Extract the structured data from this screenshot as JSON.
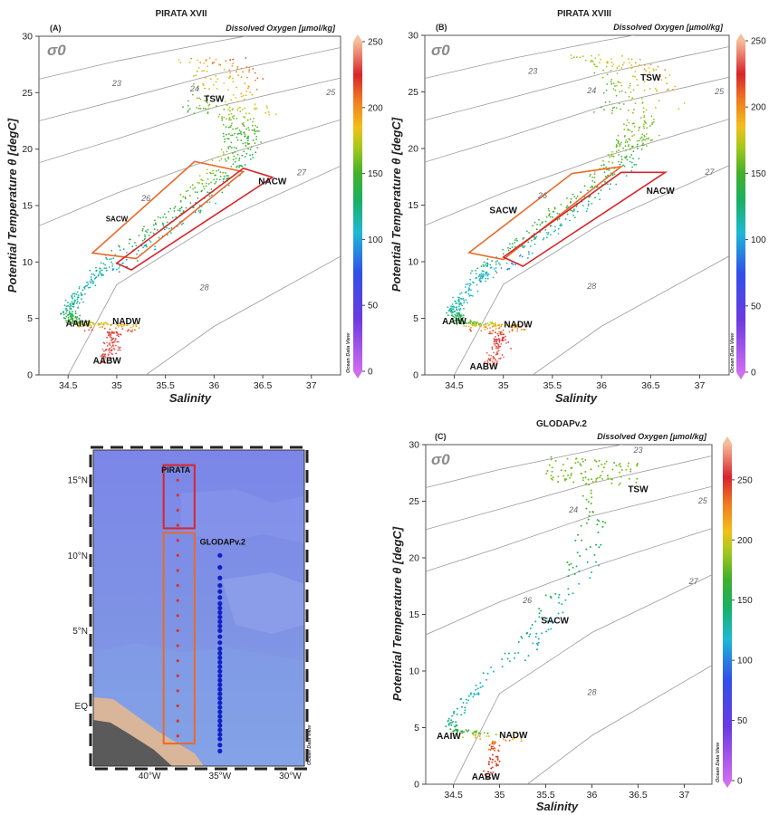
{
  "chart_data": [
    {
      "type": "scatter",
      "id": "A",
      "panel_label": "(A)",
      "title": "PIRATA XVII",
      "colorbar_label": "Dissolved Oxygen [µmol/kg]",
      "colorbar_ticks": [
        0,
        50,
        100,
        150,
        200,
        250
      ],
      "colorbar_range": [
        0,
        250
      ],
      "xlabel": "Salinity",
      "ylabel": "Potential Temperature θ [degC]",
      "xlim": [
        34.2,
        37.3
      ],
      "ylim": [
        0,
        30
      ],
      "xticks": [
        34.5,
        35,
        35.5,
        36,
        36.5,
        37
      ],
      "yticks": [
        0,
        5,
        10,
        15,
        20,
        25,
        30
      ],
      "sigma_label": "σ0",
      "watermark": "Ocean Data View",
      "isopycnals": [
        {
          "label": "23",
          "pts": [
            [
              34.2,
              26.2
            ],
            [
              35.0,
              27.8
            ],
            [
              36.0,
              29.5
            ],
            [
              37.3,
              31.5
            ]
          ],
          "lab": [
            35.0,
            25.6
          ]
        },
        {
          "label": "24",
          "pts": [
            [
              34.2,
              22.5
            ],
            [
              35.0,
              24.3
            ],
            [
              36.0,
              26.6
            ],
            [
              37.3,
              29.0
            ]
          ],
          "lab": [
            35.8,
            25.1
          ]
        },
        {
          "label": "25",
          "pts": [
            [
              34.2,
              18.8
            ],
            [
              35.0,
              20.9
            ],
            [
              36.0,
              23.7
            ],
            [
              37.3,
              26.3
            ]
          ],
          "lab": [
            37.2,
            24.8
          ]
        },
        {
          "label": "26",
          "pts": [
            [
              34.2,
              13.2
            ],
            [
              35.0,
              16.1
            ],
            [
              36.0,
              19.2
            ],
            [
              37.3,
              22.6
            ]
          ],
          "lab": [
            35.3,
            15.4
          ]
        },
        {
          "label": "27",
          "pts": [
            [
              34.5,
              0.0
            ],
            [
              35.0,
              8.0
            ],
            [
              36.0,
              13.4
            ],
            [
              37.3,
              18.5
            ]
          ],
          "lab": [
            36.9,
            17.7
          ]
        },
        {
          "label": "28",
          "pts": [
            [
              35.3,
              0.0
            ],
            [
              36.0,
              4.3
            ],
            [
              37.3,
              10.5
            ]
          ],
          "lab": [
            35.9,
            7.5
          ]
        }
      ],
      "water_masses": [
        {
          "label": "TSW",
          "x": 36.0,
          "y": 24.2
        },
        {
          "label": "NACW",
          "x": 36.6,
          "y": 16.9
        },
        {
          "label": "SACW",
          "x": 35.0,
          "y": 13.6,
          "small": true
        },
        {
          "label": "AAIW",
          "x": 34.6,
          "y": 4.3
        },
        {
          "label": "NADW",
          "x": 35.1,
          "y": 4.5
        },
        {
          "label": "AABW",
          "x": 34.9,
          "y": 1.0
        }
      ],
      "boxes": [
        {
          "name": "SACW",
          "color": "#ea6a2a",
          "pts": [
            [
              34.75,
              10.8
            ],
            [
              35.8,
              18.9
            ],
            [
              36.3,
              18.0
            ],
            [
              35.2,
              10.3
            ]
          ]
        },
        {
          "name": "NACW",
          "color": "#d6262b",
          "pts": [
            [
              35.0,
              9.9
            ],
            [
              36.3,
              18.3
            ],
            [
              36.6,
              17.5
            ],
            [
              35.15,
              9.3
            ]
          ]
        }
      ]
    },
    {
      "type": "scatter",
      "id": "B",
      "panel_label": "(B)",
      "title": "PIRATA XVIII",
      "colorbar_label": "Dissolved Oxygen [µmol/kg]",
      "colorbar_ticks": [
        0,
        50,
        100,
        150,
        200,
        250
      ],
      "colorbar_range": [
        0,
        250
      ],
      "xlabel": "Salinity",
      "ylabel": "Potential Temperature θ [degC]",
      "xlim": [
        34.2,
        37.3
      ],
      "ylim": [
        0,
        30
      ],
      "xticks": [
        34.5,
        35,
        35.5,
        36,
        36.5,
        37
      ],
      "yticks": [
        0,
        5,
        10,
        15,
        20,
        25,
        30
      ],
      "sigma_label": "σ0",
      "watermark": "Ocean Data View",
      "isopycnals": [
        {
          "label": "23",
          "pts": [
            [
              34.2,
              26.2
            ],
            [
              35.0,
              27.8
            ],
            [
              36.0,
              29.5
            ],
            [
              37.3,
              31.5
            ]
          ],
          "lab": [
            35.3,
            26.6
          ]
        },
        {
          "label": "24",
          "pts": [
            [
              34.2,
              22.5
            ],
            [
              35.0,
              24.3
            ],
            [
              36.0,
              26.6
            ],
            [
              37.3,
              29.0
            ]
          ],
          "lab": [
            35.9,
            24.9
          ]
        },
        {
          "label": "25",
          "pts": [
            [
              34.2,
              18.8
            ],
            [
              35.0,
              20.9
            ],
            [
              36.0,
              23.7
            ],
            [
              37.3,
              26.3
            ]
          ],
          "lab": [
            37.2,
            24.8
          ]
        },
        {
          "label": "26",
          "pts": [
            [
              34.2,
              13.2
            ],
            [
              35.0,
              16.1
            ],
            [
              36.0,
              19.2
            ],
            [
              37.3,
              22.6
            ]
          ],
          "lab": [
            35.4,
            15.6
          ]
        },
        {
          "label": "27",
          "pts": [
            [
              34.5,
              0.0
            ],
            [
              35.0,
              8.0
            ],
            [
              36.0,
              13.4
            ],
            [
              37.3,
              18.5
            ]
          ],
          "lab": [
            37.1,
            17.7
          ]
        },
        {
          "label": "28",
          "pts": [
            [
              35.3,
              0.0
            ],
            [
              36.0,
              4.3
            ],
            [
              37.3,
              10.5
            ]
          ],
          "lab": [
            35.9,
            7.6
          ]
        }
      ],
      "water_masses": [
        {
          "label": "TSW",
          "x": 36.5,
          "y": 26.0
        },
        {
          "label": "NACW",
          "x": 36.6,
          "y": 16.0
        },
        {
          "label": "SACW",
          "x": 35.0,
          "y": 14.3
        },
        {
          "label": "AAIW",
          "x": 34.5,
          "y": 4.5
        },
        {
          "label": "NADW",
          "x": 35.15,
          "y": 4.2
        },
        {
          "label": "AABW",
          "x": 34.8,
          "y": 0.5
        }
      ],
      "boxes": [
        {
          "name": "SACW",
          "color": "#ea6a2a",
          "pts": [
            [
              34.65,
              10.8
            ],
            [
              35.7,
              17.8
            ],
            [
              36.2,
              18.4
            ],
            [
              35.0,
              10.2
            ]
          ]
        },
        {
          "name": "NACW",
          "color": "#d6262b",
          "pts": [
            [
              35.0,
              10.4
            ],
            [
              36.2,
              17.9
            ],
            [
              36.65,
              17.9
            ],
            [
              35.2,
              9.6
            ]
          ]
        }
      ]
    },
    {
      "type": "scatter",
      "id": "C",
      "panel_label": "(C)",
      "title": "GLODAPv.2",
      "colorbar_label": "Dissolved Oxygen [µmol/kg]",
      "colorbar_ticks": [
        0,
        50,
        100,
        150,
        200,
        250
      ],
      "colorbar_range": [
        0,
        280
      ],
      "xlabel": "Salinity",
      "ylabel": "Potential Temperature θ [degC]",
      "xlim": [
        34.2,
        37.3
      ],
      "ylim": [
        0,
        30
      ],
      "xticks": [
        34.5,
        35,
        35.5,
        36,
        36.5,
        37
      ],
      "yticks": [
        0,
        5,
        10,
        15,
        20,
        25,
        30
      ],
      "sigma_label": "σ0",
      "watermark": "Ocean Data View",
      "isopycnals": [
        {
          "label": "23",
          "pts": [
            [
              34.2,
              26.2
            ],
            [
              35.0,
              27.8
            ],
            [
              36.0,
              29.5
            ],
            [
              37.3,
              31.5
            ]
          ],
          "lab": [
            36.5,
            29.3
          ]
        },
        {
          "label": "24",
          "pts": [
            [
              34.2,
              22.5
            ],
            [
              35.0,
              24.3
            ],
            [
              36.0,
              26.6
            ],
            [
              37.3,
              29.0
            ]
          ],
          "lab": [
            35.8,
            24.0
          ]
        },
        {
          "label": "25",
          "pts": [
            [
              34.2,
              18.8
            ],
            [
              35.0,
              20.9
            ],
            [
              36.0,
              23.7
            ],
            [
              37.3,
              26.3
            ]
          ],
          "lab": [
            37.2,
            24.8
          ]
        },
        {
          "label": "26",
          "pts": [
            [
              34.2,
              13.2
            ],
            [
              35.0,
              16.1
            ],
            [
              36.0,
              19.2
            ],
            [
              37.3,
              22.6
            ]
          ],
          "lab": [
            35.3,
            16.0
          ]
        },
        {
          "label": "27",
          "pts": [
            [
              34.5,
              0.0
            ],
            [
              35.0,
              8.0
            ],
            [
              36.0,
              13.4
            ],
            [
              37.3,
              18.5
            ]
          ],
          "lab": [
            37.1,
            17.7
          ]
        },
        {
          "label": "28",
          "pts": [
            [
              35.3,
              0.0
            ],
            [
              36.0,
              4.3
            ],
            [
              37.3,
              10.5
            ]
          ],
          "lab": [
            36.0,
            7.9
          ]
        }
      ],
      "water_masses": [
        {
          "label": "TSW",
          "x": 36.5,
          "y": 25.8
        },
        {
          "label": "SACW",
          "x": 35.6,
          "y": 14.2
        },
        {
          "label": "AAIW",
          "x": 34.45,
          "y": 4.0
        },
        {
          "label": "NADW",
          "x": 35.15,
          "y": 4.1
        },
        {
          "label": "AABW",
          "x": 34.85,
          "y": 0.4
        }
      ],
      "boxes": []
    },
    {
      "type": "map",
      "id": "map",
      "lon_ticks": [
        "40°W",
        "35°W",
        "30°W"
      ],
      "lon_values": [
        -40,
        -35,
        -30
      ],
      "lat_ticks": [
        "15°N",
        "10°N",
        "5°N",
        "EQ"
      ],
      "lat_values": [
        15,
        10,
        5,
        0
      ],
      "lon_range": [
        -44,
        -29
      ],
      "lat_range": [
        -4,
        17
      ],
      "watermark": "Ocean Data View",
      "groups": [
        {
          "label": "PIRATA",
          "color": "#d8322a",
          "lon": -38.0,
          "lats": [
            15,
            14,
            13,
            12,
            11,
            10,
            9,
            8,
            7,
            6,
            5,
            4,
            3,
            2,
            1,
            0,
            -1,
            -2
          ]
        },
        {
          "label": "GLODAPv.2",
          "color": "#1020c8",
          "lon": -35.0,
          "lats": [
            10,
            9.2,
            8.5,
            8.0,
            7.6,
            7.2,
            6.8,
            6.5,
            6.2,
            5.9,
            5.6,
            5.3,
            5.0,
            4.6,
            4.2,
            3.8,
            3.5,
            3.2,
            2.9,
            2.6,
            2.3,
            2.0,
            1.7,
            1.4,
            1.1,
            0.8,
            0.5,
            0.2,
            -0.1,
            -0.4,
            -0.7,
            -1.0,
            -1.3,
            -1.6,
            -1.9,
            -2.2,
            -2.6,
            -3.0
          ]
        }
      ],
      "boxes": [
        {
          "name": "NACW",
          "color": "#d6262b",
          "lon": [
            -39.0,
            -36.8
          ],
          "lat": [
            11.8,
            16.0
          ]
        },
        {
          "name": "SACW",
          "color": "#ea6a2a",
          "lon": [
            -39.0,
            -36.8
          ],
          "lat": [
            -2.5,
            11.5
          ]
        }
      ]
    }
  ]
}
